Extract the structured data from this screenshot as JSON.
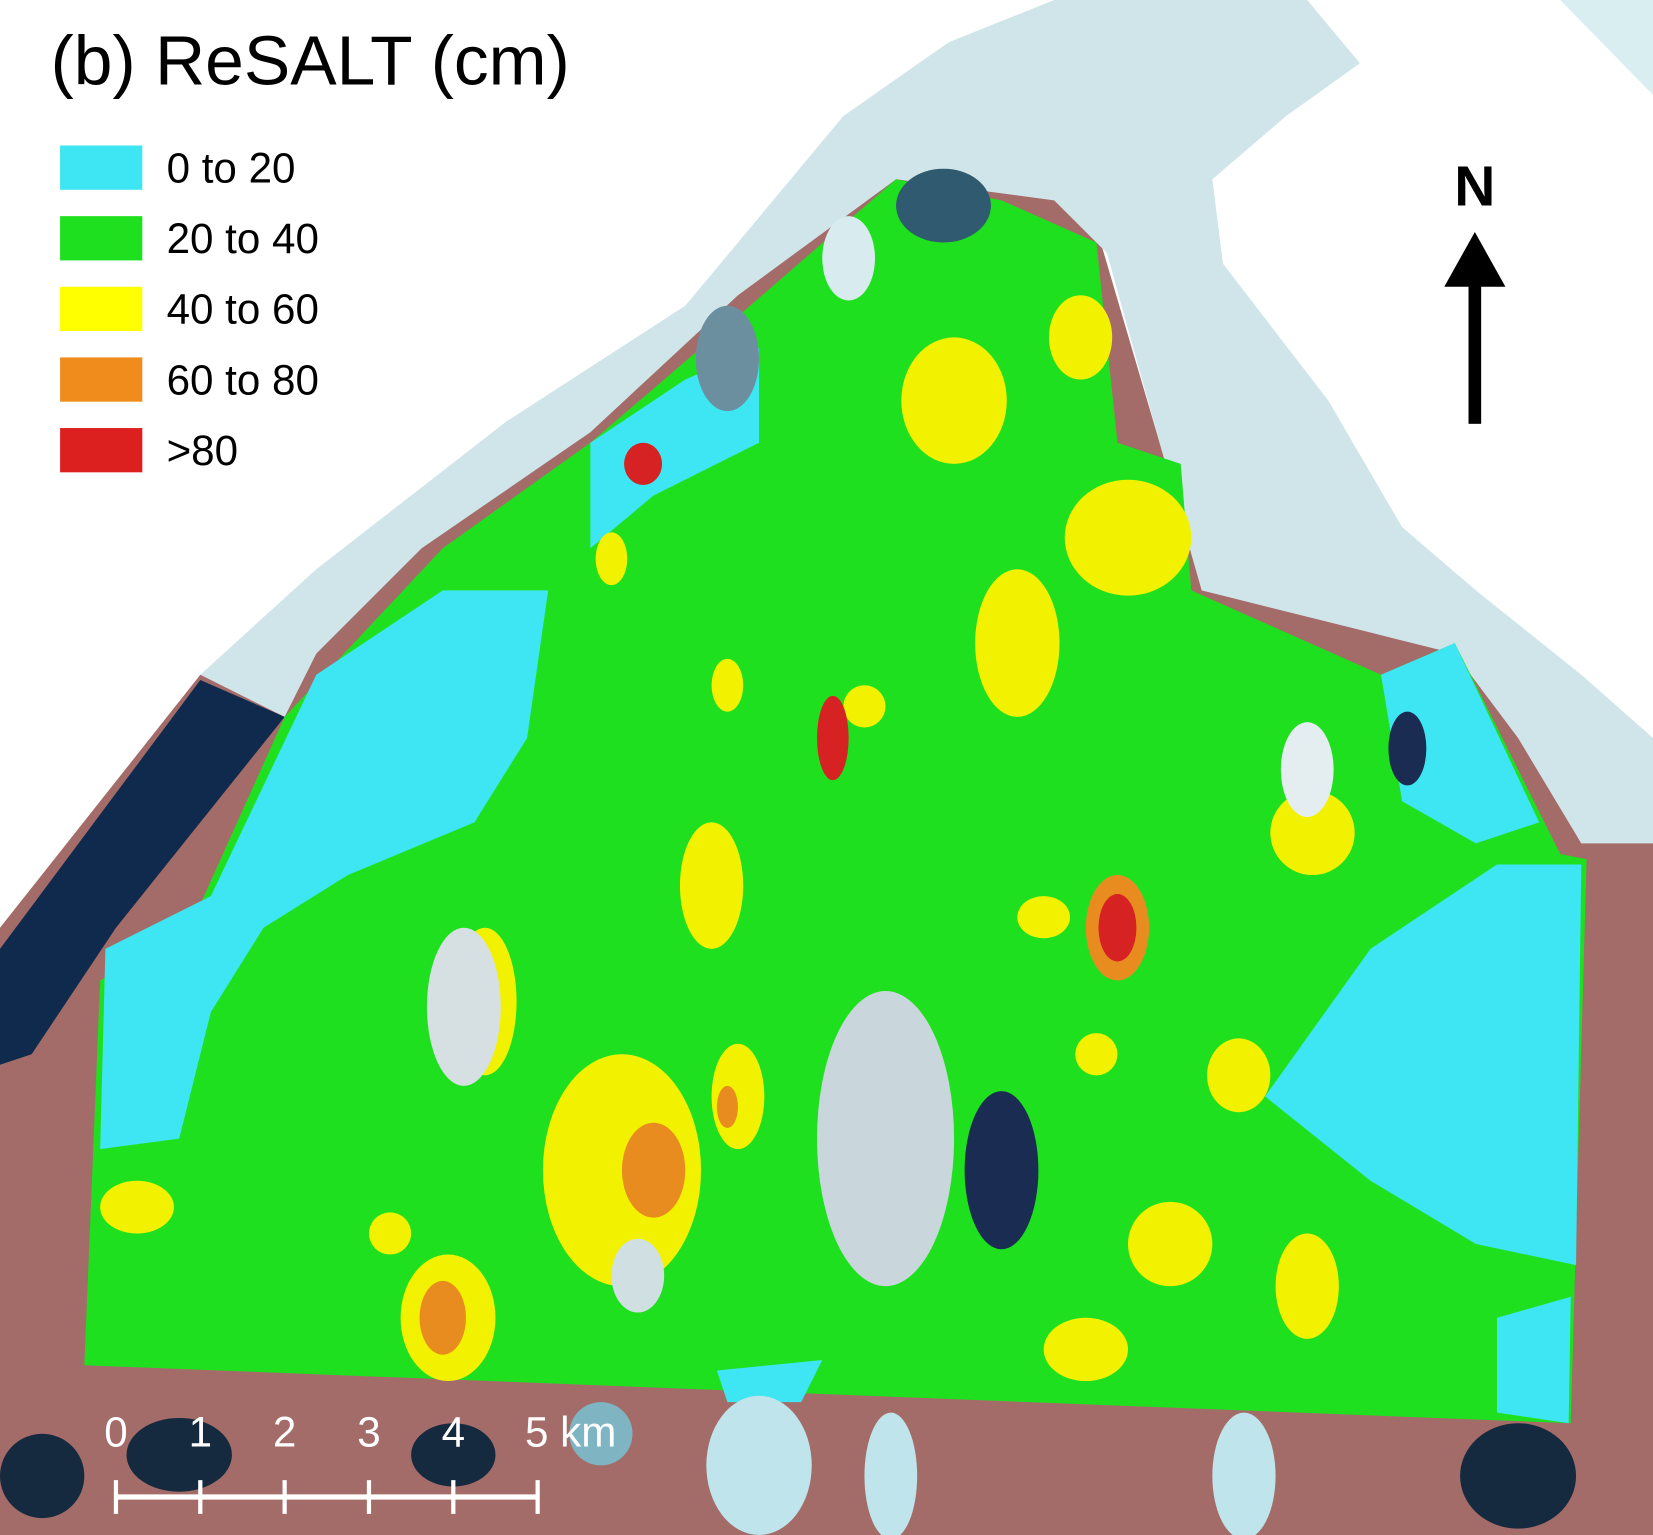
{
  "title": "(b) ReSALT (cm)",
  "legend": {
    "items": [
      {
        "label": "0 to 20",
        "color": "#3de6f2"
      },
      {
        "label": "20 to 40",
        "color": "#1fe01f"
      },
      {
        "label": "40 to 60",
        "color": "#ffff00"
      },
      {
        "label": "60 to 80",
        "color": "#f08c1c"
      },
      {
        "label": ">80",
        "color": "#dc2020"
      }
    ]
  },
  "north_arrow": {
    "label": "N"
  },
  "scale_bar": {
    "labels": [
      "0",
      "1",
      "2",
      "3",
      "4",
      "5 km"
    ]
  }
}
